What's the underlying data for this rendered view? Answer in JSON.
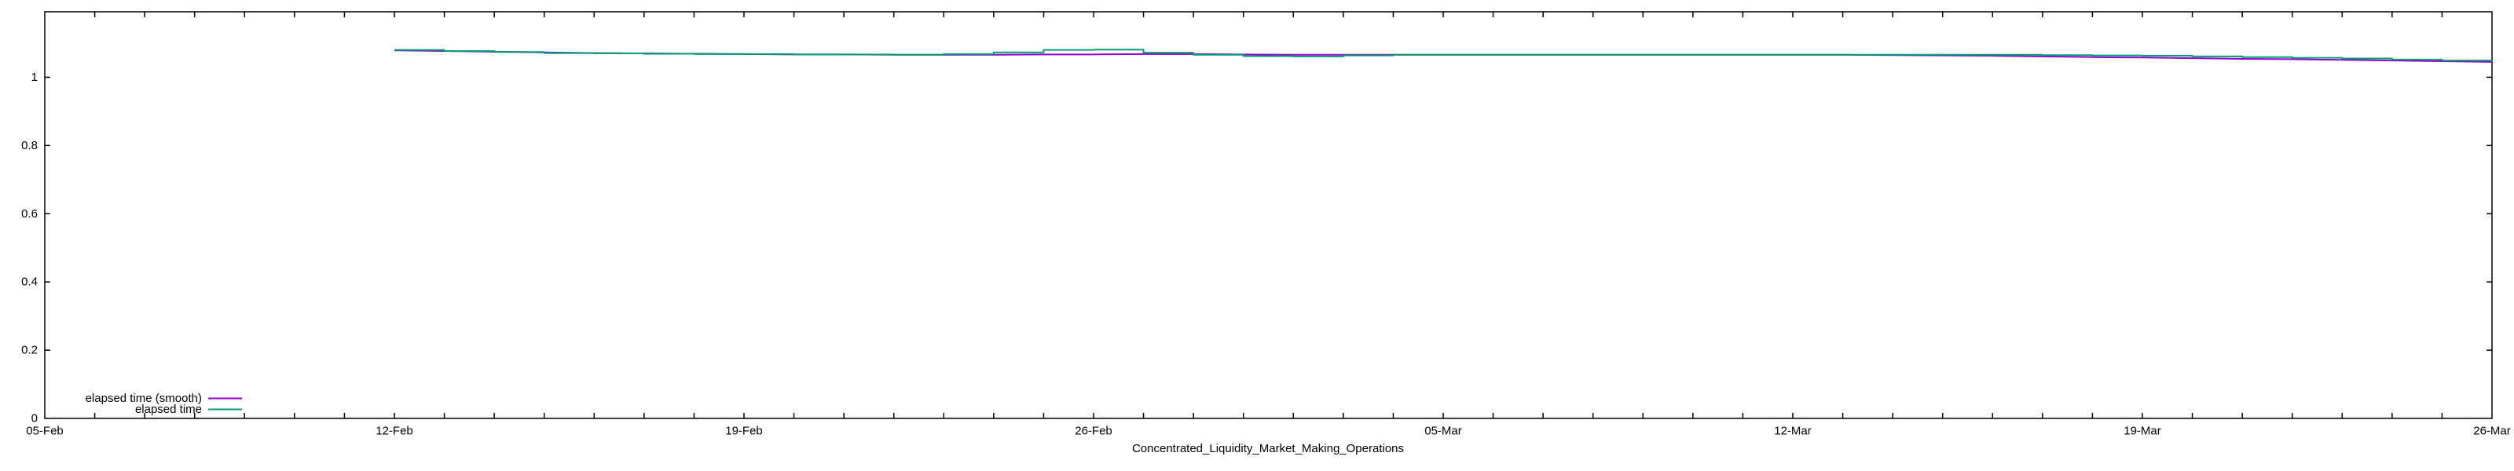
{
  "window": {
    "background": "#ffffff",
    "border_color": "#000000"
  },
  "chart_data": {
    "type": "line",
    "title": "Concentrated_Liquidity_Market_Making_Operations",
    "xlabel": "",
    "ylabel": "",
    "grid": false,
    "legend_position": "bottom-left-inside",
    "x_axis": {
      "kind": "date",
      "range_days": [
        0,
        49
      ],
      "tick_days": [
        0,
        7,
        14,
        21,
        28,
        35,
        42,
        49
      ],
      "tick_labels": [
        "05-Feb",
        "12-Feb",
        "19-Feb",
        "26-Feb",
        "05-Mar",
        "12-Mar",
        "19-Mar",
        "26-Mar"
      ],
      "minor_tick_every_days": 1
    },
    "y_axis": {
      "range": [
        0,
        1.192
      ],
      "tick_values": [
        0,
        0.2,
        0.4,
        0.6,
        0.8,
        1
      ],
      "tick_labels": [
        "0",
        "0.2",
        "0.4",
        "0.6",
        "0.8",
        "1"
      ]
    },
    "series": [
      {
        "name": "elapsed time (smooth)",
        "color": "#9400d3",
        "style": "lines",
        "x_days": [
          7,
          8,
          9,
          10,
          11,
          12,
          13,
          14,
          15,
          16,
          17,
          18,
          19,
          20,
          21,
          22,
          23,
          24,
          25,
          26,
          27,
          28,
          29,
          30,
          31,
          32,
          33,
          34,
          35,
          36,
          37,
          38,
          39,
          40,
          41,
          42,
          43,
          44,
          45,
          46,
          47,
          48,
          49
        ],
        "values": [
          1.079,
          1.077,
          1.075,
          1.073,
          1.071,
          1.07,
          1.069,
          1.068,
          1.067,
          1.067,
          1.066,
          1.066,
          1.066,
          1.067,
          1.067,
          1.068,
          1.068,
          1.067,
          1.066,
          1.066,
          1.066,
          1.066,
          1.066,
          1.066,
          1.066,
          1.066,
          1.066,
          1.066,
          1.066,
          1.066,
          1.065,
          1.064,
          1.063,
          1.061,
          1.059,
          1.058,
          1.056,
          1.054,
          1.053,
          1.051,
          1.049,
          1.047,
          1.045
        ]
      },
      {
        "name": "elapsed time",
        "color": "#009e73",
        "style": "steps",
        "x_days": [
          7,
          8,
          9,
          10,
          11,
          12,
          13,
          14,
          15,
          16,
          17,
          18,
          19,
          20,
          21,
          22,
          23,
          24,
          25,
          26,
          27,
          28,
          29,
          30,
          31,
          32,
          33,
          34,
          35,
          36,
          37,
          38,
          39,
          40,
          41,
          42,
          43,
          44,
          45,
          46,
          47,
          48,
          49
        ],
        "values": [
          1.08,
          1.077,
          1.074,
          1.071,
          1.07,
          1.069,
          1.068,
          1.068,
          1.067,
          1.067,
          1.066,
          1.068,
          1.073,
          1.08,
          1.081,
          1.072,
          1.066,
          1.062,
          1.061,
          1.064,
          1.066,
          1.066,
          1.066,
          1.066,
          1.066,
          1.066,
          1.066,
          1.066,
          1.066,
          1.066,
          1.066,
          1.066,
          1.066,
          1.065,
          1.064,
          1.063,
          1.061,
          1.059,
          1.057,
          1.055,
          1.052,
          1.049,
          1.046
        ]
      }
    ]
  }
}
